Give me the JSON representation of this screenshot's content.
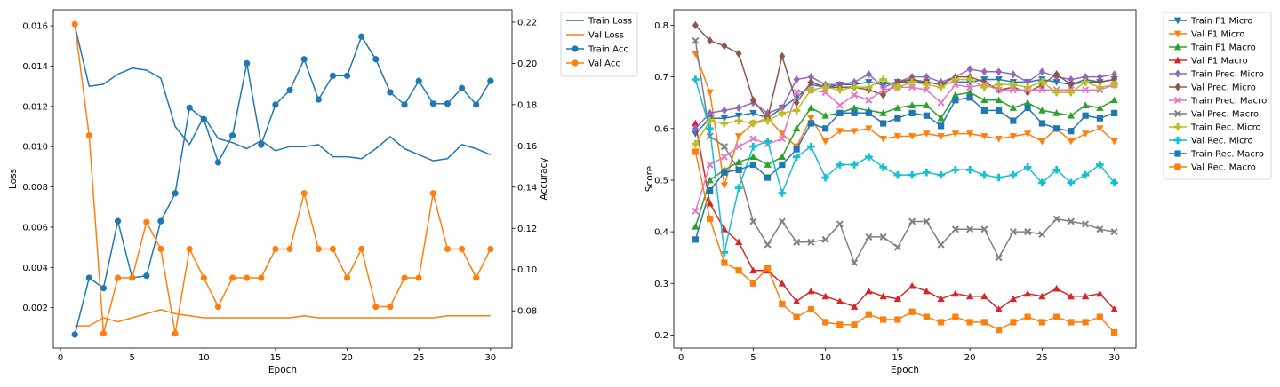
{
  "chart_data": [
    {
      "type": "line",
      "xlabel": "Epoch",
      "ylabel": "Loss",
      "ylabel_right": "Accuracy",
      "xlim": [
        -0.5,
        31.5
      ],
      "ylim": [
        0.0,
        0.0168
      ],
      "ylim_right": [
        0.062,
        0.226
      ],
      "x_ticks": [
        0,
        5,
        10,
        15,
        20,
        25,
        30
      ],
      "y_ticks": [
        0.002,
        0.004,
        0.006,
        0.008,
        0.01,
        0.012,
        0.014,
        0.016
      ],
      "y_tick_labels": [
        "0.002",
        "0.004",
        "0.006",
        "0.008",
        "0.010",
        "0.012",
        "0.014",
        "0.016"
      ],
      "y_ticks_right": [
        0.08,
        0.1,
        0.12,
        0.14,
        0.16,
        0.18,
        0.2,
        0.22
      ],
      "y_tick_labels_right": [
        "0.08",
        "0.10",
        "0.12",
        "0.14",
        "0.16",
        "0.18",
        "0.20",
        "0.22"
      ],
      "grid": false,
      "legend_position": "outside right",
      "x": [
        1,
        2,
        3,
        4,
        5,
        6,
        7,
        8,
        9,
        10,
        11,
        12,
        13,
        14,
        15,
        16,
        17,
        18,
        19,
        20,
        21,
        22,
        23,
        24,
        25,
        26,
        27,
        28,
        29,
        30
      ],
      "series": [
        {
          "name": "Train Loss",
          "axis": "left",
          "color": "#1f77b4",
          "marker": "none",
          "values": [
            0.016,
            0.013,
            0.0131,
            0.0136,
            0.0139,
            0.0138,
            0.0134,
            0.011,
            0.0101,
            0.0115,
            0.0104,
            0.0102,
            0.0099,
            0.0103,
            0.0098,
            0.01,
            0.01,
            0.0101,
            0.0095,
            0.0095,
            0.0094,
            0.0099,
            0.0105,
            0.0099,
            0.0096,
            0.0093,
            0.0094,
            0.0101,
            0.0099,
            0.0096
          ]
        },
        {
          "name": "Val Loss",
          "axis": "left",
          "color": "#ff7f0e",
          "marker": "none",
          "values": [
            0.0011,
            0.0011,
            0.0015,
            0.0013,
            0.0015,
            0.0017,
            0.0019,
            0.0017,
            0.0016,
            0.0015,
            0.0015,
            0.0015,
            0.0015,
            0.0015,
            0.0015,
            0.0015,
            0.0016,
            0.0015,
            0.0015,
            0.0015,
            0.0015,
            0.0015,
            0.0015,
            0.0015,
            0.0015,
            0.0015,
            0.0016,
            0.0016,
            0.0016,
            0.0016
          ]
        },
        {
          "name": "Train Acc",
          "axis": "right",
          "color": "#1f77b4",
          "marker": "circle",
          "values": [
            0.0685,
            0.096,
            0.091,
            0.1235,
            0.096,
            0.097,
            0.1235,
            0.137,
            0.1785,
            0.173,
            0.152,
            0.165,
            0.2,
            0.1605,
            0.18,
            0.187,
            0.202,
            0.1825,
            0.194,
            0.194,
            0.213,
            0.202,
            0.186,
            0.18,
            0.1915,
            0.1805,
            0.1805,
            0.188,
            0.18,
            0.1915
          ]
        },
        {
          "name": "Val Acc",
          "axis": "right",
          "color": "#ff7f0e",
          "marker": "circle",
          "values": [
            0.219,
            0.165,
            0.069,
            0.096,
            0.096,
            0.123,
            0.11,
            0.069,
            0.11,
            0.096,
            0.082,
            0.096,
            0.096,
            0.096,
            0.11,
            0.11,
            0.137,
            0.11,
            0.11,
            0.096,
            0.11,
            0.082,
            0.082,
            0.096,
            0.096,
            0.137,
            0.11,
            0.11,
            0.096,
            0.11
          ]
        }
      ]
    },
    {
      "type": "line",
      "xlabel": "Epoch",
      "ylabel": "Score",
      "xlim": [
        -0.5,
        31.5
      ],
      "ylim": [
        0.175,
        0.83
      ],
      "x_ticks": [
        0,
        5,
        10,
        15,
        20,
        25,
        30
      ],
      "y_ticks": [
        0.2,
        0.3,
        0.4,
        0.5,
        0.6,
        0.7,
        0.8
      ],
      "y_tick_labels": [
        "0.2",
        "0.3",
        "0.4",
        "0.5",
        "0.6",
        "0.7",
        "0.8"
      ],
      "grid": false,
      "legend_position": "outside right",
      "x": [
        1,
        2,
        3,
        4,
        5,
        6,
        7,
        8,
        9,
        10,
        11,
        12,
        13,
        14,
        15,
        16,
        17,
        18,
        19,
        20,
        21,
        22,
        23,
        24,
        25,
        26,
        27,
        28,
        29,
        30
      ],
      "series": [
        {
          "name": "Train F1 Micro",
          "color": "#1f77b4",
          "marker": "tri-down",
          "values": [
            0.59,
            0.62,
            0.62,
            0.625,
            0.63,
            0.62,
            0.64,
            0.66,
            0.685,
            0.68,
            0.685,
            0.685,
            0.69,
            0.685,
            0.69,
            0.69,
            0.69,
            0.685,
            0.69,
            0.69,
            0.695,
            0.695,
            0.69,
            0.69,
            0.695,
            0.69,
            0.685,
            0.695,
            0.69,
            0.695
          ]
        },
        {
          "name": "Val F1 Micro",
          "color": "#ff7f0e",
          "marker": "tri-down",
          "values": [
            0.745,
            0.67,
            0.49,
            0.585,
            0.61,
            0.62,
            0.59,
            0.565,
            0.62,
            0.575,
            0.595,
            0.595,
            0.6,
            0.58,
            0.585,
            0.585,
            0.59,
            0.585,
            0.59,
            0.59,
            0.585,
            0.58,
            0.585,
            0.59,
            0.575,
            0.6,
            0.575,
            0.59,
            0.6,
            0.575
          ]
        },
        {
          "name": "Train F1 Macro",
          "color": "#2ca02c",
          "marker": "tri-up",
          "values": [
            0.41,
            0.5,
            0.52,
            0.535,
            0.545,
            0.53,
            0.545,
            0.6,
            0.64,
            0.625,
            0.63,
            0.64,
            0.635,
            0.63,
            0.64,
            0.645,
            0.645,
            0.62,
            0.665,
            0.67,
            0.655,
            0.655,
            0.64,
            0.65,
            0.635,
            0.63,
            0.625,
            0.645,
            0.64,
            0.655
          ]
        },
        {
          "name": "Val F1 Macro",
          "color": "#d62728",
          "marker": "tri-up",
          "values": [
            0.61,
            0.455,
            0.405,
            0.38,
            0.325,
            0.325,
            0.3,
            0.265,
            0.285,
            0.275,
            0.265,
            0.255,
            0.285,
            0.275,
            0.27,
            0.295,
            0.285,
            0.27,
            0.28,
            0.275,
            0.275,
            0.25,
            0.27,
            0.28,
            0.275,
            0.29,
            0.275,
            0.275,
            0.28,
            0.25
          ]
        },
        {
          "name": "Train Prec. Micro",
          "color": "#9467bd",
          "marker": "diamond",
          "values": [
            0.6,
            0.63,
            0.635,
            0.64,
            0.65,
            0.63,
            0.64,
            0.695,
            0.7,
            0.685,
            0.685,
            0.69,
            0.705,
            0.68,
            0.69,
            0.7,
            0.7,
            0.69,
            0.7,
            0.715,
            0.71,
            0.71,
            0.705,
            0.69,
            0.71,
            0.7,
            0.695,
            0.7,
            0.7,
            0.705
          ]
        },
        {
          "name": "Val Prec. Micro",
          "color": "#8c564b",
          "marker": "diamond",
          "values": [
            0.8,
            0.77,
            0.76,
            0.745,
            0.655,
            0.62,
            0.74,
            0.65,
            0.69,
            0.68,
            0.68,
            0.68,
            0.675,
            0.665,
            0.69,
            0.695,
            0.69,
            0.685,
            0.7,
            0.7,
            0.69,
            0.675,
            0.68,
            0.67,
            0.685,
            0.705,
            0.685,
            0.69,
            0.69,
            0.695
          ]
        },
        {
          "name": "Train Prec. Macro",
          "color": "#e377c2",
          "marker": "x",
          "values": [
            0.44,
            0.53,
            0.545,
            0.565,
            0.58,
            0.57,
            0.58,
            0.67,
            0.675,
            0.67,
            0.645,
            0.665,
            0.655,
            0.675,
            0.68,
            0.68,
            0.675,
            0.65,
            0.685,
            0.68,
            0.685,
            0.675,
            0.675,
            0.675,
            0.675,
            0.675,
            0.675,
            0.675,
            0.675,
            0.685
          ]
        },
        {
          "name": "Val Prec. Macro",
          "color": "#7f7f7f",
          "marker": "x",
          "values": [
            0.77,
            0.585,
            0.565,
            0.52,
            0.42,
            0.375,
            0.42,
            0.38,
            0.38,
            0.385,
            0.415,
            0.34,
            0.39,
            0.39,
            0.37,
            0.42,
            0.42,
            0.375,
            0.405,
            0.405,
            0.405,
            0.35,
            0.4,
            0.4,
            0.395,
            0.425,
            0.42,
            0.415,
            0.405,
            0.4
          ]
        },
        {
          "name": "Train Rec. Micro",
          "color": "#bcbd22",
          "marker": "plus",
          "values": [
            0.57,
            0.615,
            0.61,
            0.615,
            0.61,
            0.615,
            0.63,
            0.635,
            0.675,
            0.68,
            0.675,
            0.68,
            0.68,
            0.695,
            0.68,
            0.69,
            0.685,
            0.68,
            0.695,
            0.695,
            0.68,
            0.685,
            0.685,
            0.68,
            0.69,
            0.67,
            0.67,
            0.69,
            0.68,
            0.685
          ]
        },
        {
          "name": "Val Rec. Micro",
          "color": "#17becf",
          "marker": "plus",
          "values": [
            0.695,
            0.6,
            0.36,
            0.485,
            0.565,
            0.575,
            0.475,
            0.545,
            0.565,
            0.505,
            0.53,
            0.53,
            0.545,
            0.525,
            0.51,
            0.51,
            0.515,
            0.51,
            0.52,
            0.52,
            0.51,
            0.505,
            0.51,
            0.525,
            0.495,
            0.52,
            0.495,
            0.51,
            0.53,
            0.495
          ]
        },
        {
          "name": "Train Rec. Macro",
          "color": "#1f77b4",
          "marker": "square",
          "values": [
            0.385,
            0.48,
            0.515,
            0.52,
            0.53,
            0.505,
            0.53,
            0.56,
            0.61,
            0.6,
            0.63,
            0.63,
            0.63,
            0.61,
            0.62,
            0.63,
            0.625,
            0.605,
            0.655,
            0.66,
            0.635,
            0.635,
            0.615,
            0.64,
            0.61,
            0.6,
            0.595,
            0.625,
            0.62,
            0.63
          ]
        },
        {
          "name": "Val Rec. Macro",
          "color": "#ff7f0e",
          "marker": "square",
          "values": [
            0.555,
            0.425,
            0.34,
            0.325,
            0.3,
            0.33,
            0.26,
            0.235,
            0.25,
            0.225,
            0.22,
            0.22,
            0.24,
            0.23,
            0.23,
            0.245,
            0.235,
            0.225,
            0.235,
            0.225,
            0.225,
            0.21,
            0.225,
            0.235,
            0.225,
            0.235,
            0.225,
            0.225,
            0.235,
            0.205
          ]
        }
      ]
    }
  ]
}
